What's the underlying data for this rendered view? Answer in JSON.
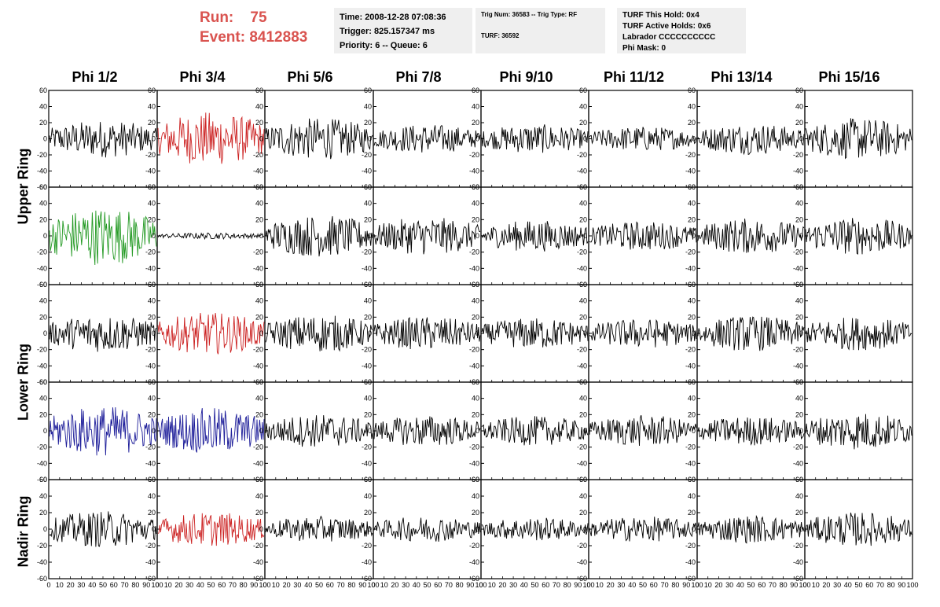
{
  "run": {
    "run_label": "Run:",
    "run_value": "75",
    "event_label": "Event:",
    "event_value": "8412883"
  },
  "info_time": {
    "time": "Time: 2008-12-28 07:08:36",
    "trigger": "Trigger: 825.157347 ms",
    "priority": "Priority: 6 -- Queue: 6"
  },
  "info_trig": {
    "trig": "Trig Num: 36583 -- Trig Type: RF",
    "turf": "TURF: 36592"
  },
  "info_turf": {
    "this_hold": "TURF This Hold: 0x4",
    "active_holds": "TURF Active Holds: 0x6",
    "labrador": "Labrador CCCCCCCCCC",
    "phi_mask": "Phi Mask: 0"
  },
  "columns": [
    "Phi 1/2",
    "Phi 3/4",
    "Phi 5/6",
    "Phi 7/8",
    "Phi 9/10",
    "Phi 11/12",
    "Phi 13/14",
    "Phi 15/16"
  ],
  "ring_labels": [
    "Upper Ring",
    "Lower Ring",
    "Nadir Ring"
  ],
  "panel_axes": {
    "y_ticks": [
      "60",
      "40",
      "20",
      "0",
      "-20",
      "-40",
      "-60"
    ],
    "x_ticks": [
      "0",
      "10",
      "20",
      "30",
      "40",
      "50",
      "60",
      "70",
      "80",
      "90",
      "100"
    ],
    "ylim": [
      -60,
      60
    ],
    "xlim": [
      0,
      100
    ]
  },
  "colors": {
    "trace_default": "#000000",
    "trace_red": "#cc2222",
    "trace_green": "#229922",
    "trace_blue": "#1c1c99",
    "run_text": "#d9534f",
    "info_box": "#efefef"
  },
  "panel_rows": [
    {
      "traces": [
        {
          "color": "black",
          "amp": 18
        },
        {
          "color": "red",
          "amp": 26
        },
        {
          "color": "black",
          "amp": 20
        },
        {
          "color": "black",
          "amp": 14
        },
        {
          "color": "black",
          "amp": 14
        },
        {
          "color": "black",
          "amp": 12
        },
        {
          "color": "black",
          "amp": 15
        },
        {
          "color": "black",
          "amp": 20
        }
      ]
    },
    {
      "traces": [
        {
          "color": "green",
          "amp": 28
        },
        {
          "color": "black",
          "amp": 3
        },
        {
          "color": "black",
          "amp": 20
        },
        {
          "color": "black",
          "amp": 18
        },
        {
          "color": "black",
          "amp": 15
        },
        {
          "color": "black",
          "amp": 14
        },
        {
          "color": "black",
          "amp": 17
        },
        {
          "color": "black",
          "amp": 18
        }
      ]
    },
    {
      "traces": [
        {
          "color": "black",
          "amp": 18
        },
        {
          "color": "red",
          "amp": 20
        },
        {
          "color": "black",
          "amp": 18
        },
        {
          "color": "black",
          "amp": 16
        },
        {
          "color": "black",
          "amp": 15
        },
        {
          "color": "black",
          "amp": 14
        },
        {
          "color": "black",
          "amp": 17
        },
        {
          "color": "black",
          "amp": 16
        }
      ]
    },
    {
      "traces": [
        {
          "color": "blue",
          "amp": 24
        },
        {
          "color": "blue",
          "amp": 22
        },
        {
          "color": "black",
          "amp": 16
        },
        {
          "color": "black",
          "amp": 15
        },
        {
          "color": "black",
          "amp": 14
        },
        {
          "color": "black",
          "amp": 15
        },
        {
          "color": "black",
          "amp": 14
        },
        {
          "color": "black",
          "amp": 18
        }
      ]
    },
    {
      "traces": [
        {
          "color": "black",
          "amp": 17
        },
        {
          "color": "red",
          "amp": 16
        },
        {
          "color": "black",
          "amp": 12
        },
        {
          "color": "black",
          "amp": 12
        },
        {
          "color": "black",
          "amp": 11
        },
        {
          "color": "black",
          "amp": 12
        },
        {
          "color": "black",
          "amp": 13
        },
        {
          "color": "black",
          "amp": 16
        }
      ]
    }
  ]
}
